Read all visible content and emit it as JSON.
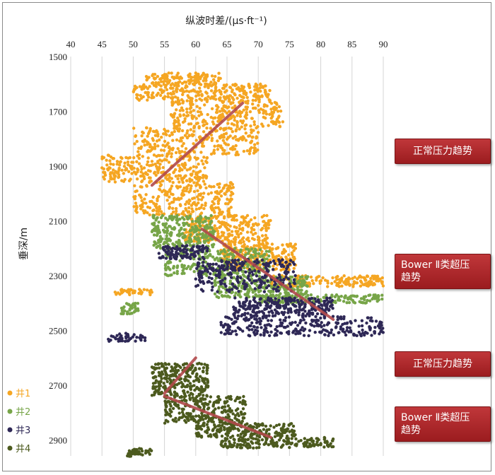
{
  "chart_data": {
    "type": "scatter",
    "xlabel": "纵波时差/(μs·ft⁻¹)",
    "ylabel": "垂深/m",
    "xlim": [
      40,
      90
    ],
    "ylim": [
      1500,
      2950
    ],
    "x_axis_position": "top",
    "y_inverted": true,
    "x_ticks": [
      "40",
      "45",
      "50",
      "55",
      "60",
      "65",
      "70",
      "75",
      "80",
      "85",
      "90"
    ],
    "y_ticks": [
      "1500",
      "1700",
      "1900",
      "2100",
      "2300",
      "2500",
      "2700",
      "2900"
    ],
    "grid": "vertical",
    "legend_position": "bottom-left",
    "series": [
      {
        "name": "井1",
        "color": "#f5a623",
        "clusters": [
          {
            "x": [
              52,
              64
            ],
            "y": [
              1560,
              1600
            ]
          },
          {
            "x": [
              50,
              72
            ],
            "y": [
              1600,
              1660
            ]
          },
          {
            "x": [
              56,
              74
            ],
            "y": [
              1660,
              1760
            ]
          },
          {
            "x": [
              50,
              70
            ],
            "y": [
              1760,
              1860
            ]
          },
          {
            "x": [
              45,
              62
            ],
            "y": [
              1860,
              1960
            ]
          },
          {
            "x": [
              50,
              66
            ],
            "y": [
              1960,
              2080
            ]
          },
          {
            "x": [
              58,
              72
            ],
            "y": [
              2080,
              2180
            ]
          },
          {
            "x": [
              64,
              76
            ],
            "y": [
              2180,
              2280
            ]
          },
          {
            "x": [
              72,
              90
            ],
            "y": [
              2300,
              2340
            ]
          },
          {
            "x": [
              47,
              53
            ],
            "y": [
              2350,
              2370
            ]
          }
        ]
      },
      {
        "name": "井2",
        "color": "#77a548",
        "clusters": [
          {
            "x": [
              53,
              63
            ],
            "y": [
              2080,
              2200
            ]
          },
          {
            "x": [
              55,
              72
            ],
            "y": [
              2200,
              2300
            ]
          },
          {
            "x": [
              63,
              78
            ],
            "y": [
              2300,
              2380
            ]
          },
          {
            "x": [
              70,
              90
            ],
            "y": [
              2370,
              2400
            ]
          },
          {
            "x": [
              48,
              51
            ],
            "y": [
              2400,
              2440
            ]
          }
        ]
      },
      {
        "name": "井3",
        "color": "#2e2856",
        "clusters": [
          {
            "x": [
              54,
              62
            ],
            "y": [
              2190,
              2240
            ]
          },
          {
            "x": [
              60,
              76
            ],
            "y": [
              2240,
              2360
            ]
          },
          {
            "x": [
              66,
              82
            ],
            "y": [
              2380,
              2450
            ]
          },
          {
            "x": [
              64,
              90
            ],
            "y": [
              2450,
              2520
            ]
          },
          {
            "x": [
              46,
              52
            ],
            "y": [
              2510,
              2540
            ]
          }
        ]
      },
      {
        "name": "井4",
        "color": "#4c5a1e",
        "clusters": [
          {
            "x": [
              53,
              62
            ],
            "y": [
              2620,
              2740
            ]
          },
          {
            "x": [
              55,
              68
            ],
            "y": [
              2740,
              2840
            ]
          },
          {
            "x": [
              60,
              76
            ],
            "y": [
              2840,
              2890
            ]
          },
          {
            "x": [
              64,
              82
            ],
            "y": [
              2890,
              2930
            ]
          },
          {
            "x": [
              49,
              53
            ],
            "y": [
              2930,
              2960
            ]
          }
        ]
      }
    ],
    "trend_lines": [
      {
        "x": [
          53,
          67.5
        ],
        "y": [
          1970,
          1670
        ]
      },
      {
        "x": [
          61,
          82
        ],
        "y": [
          2130,
          2460
        ]
      },
      {
        "x": [
          60,
          55
        ],
        "y": [
          2600,
          2730
        ]
      },
      {
        "x": [
          55,
          72
        ],
        "y": [
          2740,
          2890
        ]
      }
    ],
    "trend_line_color": "#b24a4c",
    "annotations": [
      {
        "text": "正常压力趋势",
        "lines": [
          "正常压力趋势"
        ]
      },
      {
        "text": "Bower Ⅱ类超压趋势",
        "lines": [
          "Bower Ⅱ类超压",
          "趋势"
        ]
      },
      {
        "text": "正常压力趋势",
        "lines": [
          "正常压力趋势"
        ]
      },
      {
        "text": "Bower Ⅱ类超压趋势",
        "lines": [
          "Bower Ⅱ类超压",
          "趋势"
        ]
      }
    ],
    "annotation_color": "#a8262a"
  }
}
